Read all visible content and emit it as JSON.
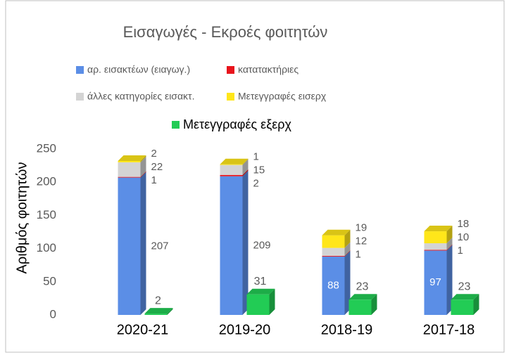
{
  "chart_data": {
    "type": "bar",
    "stacked": true,
    "title": "Εισαγωγές - Εκροές φοιτητών",
    "y_label": "Αριθμός φοιτητών",
    "categories": [
      "2020-21",
      "2019-20",
      "2018-19",
      "2017-18"
    ],
    "series": [
      {
        "name": "αρ. εισακτέων (ειαγωγ.)",
        "color": "#5b8ee6",
        "stack": "in",
        "values": [
          207,
          209,
          88,
          97
        ]
      },
      {
        "name": "κατατακτήριες",
        "color": "#e8141c",
        "stack": "in",
        "values": [
          1,
          2,
          1,
          1
        ]
      },
      {
        "name": "άλλες κατηγορίες εισακτ.",
        "color": "#d4d4d4",
        "stack": "in",
        "values": [
          22,
          15,
          12,
          10
        ]
      },
      {
        "name": "Μετεγγραφές εισερχ",
        "color": "#ffe61a",
        "stack": "in",
        "values": [
          2,
          1,
          19,
          18
        ]
      },
      {
        "name": "Μετεγγραφές εξερχ",
        "color": "#22cc55",
        "stack": "out",
        "values": [
          2,
          31,
          23,
          23
        ]
      }
    ],
    "ylim": [
      0,
      250
    ],
    "yticks": [
      0,
      50,
      100,
      150,
      200,
      250
    ],
    "grid": false
  }
}
